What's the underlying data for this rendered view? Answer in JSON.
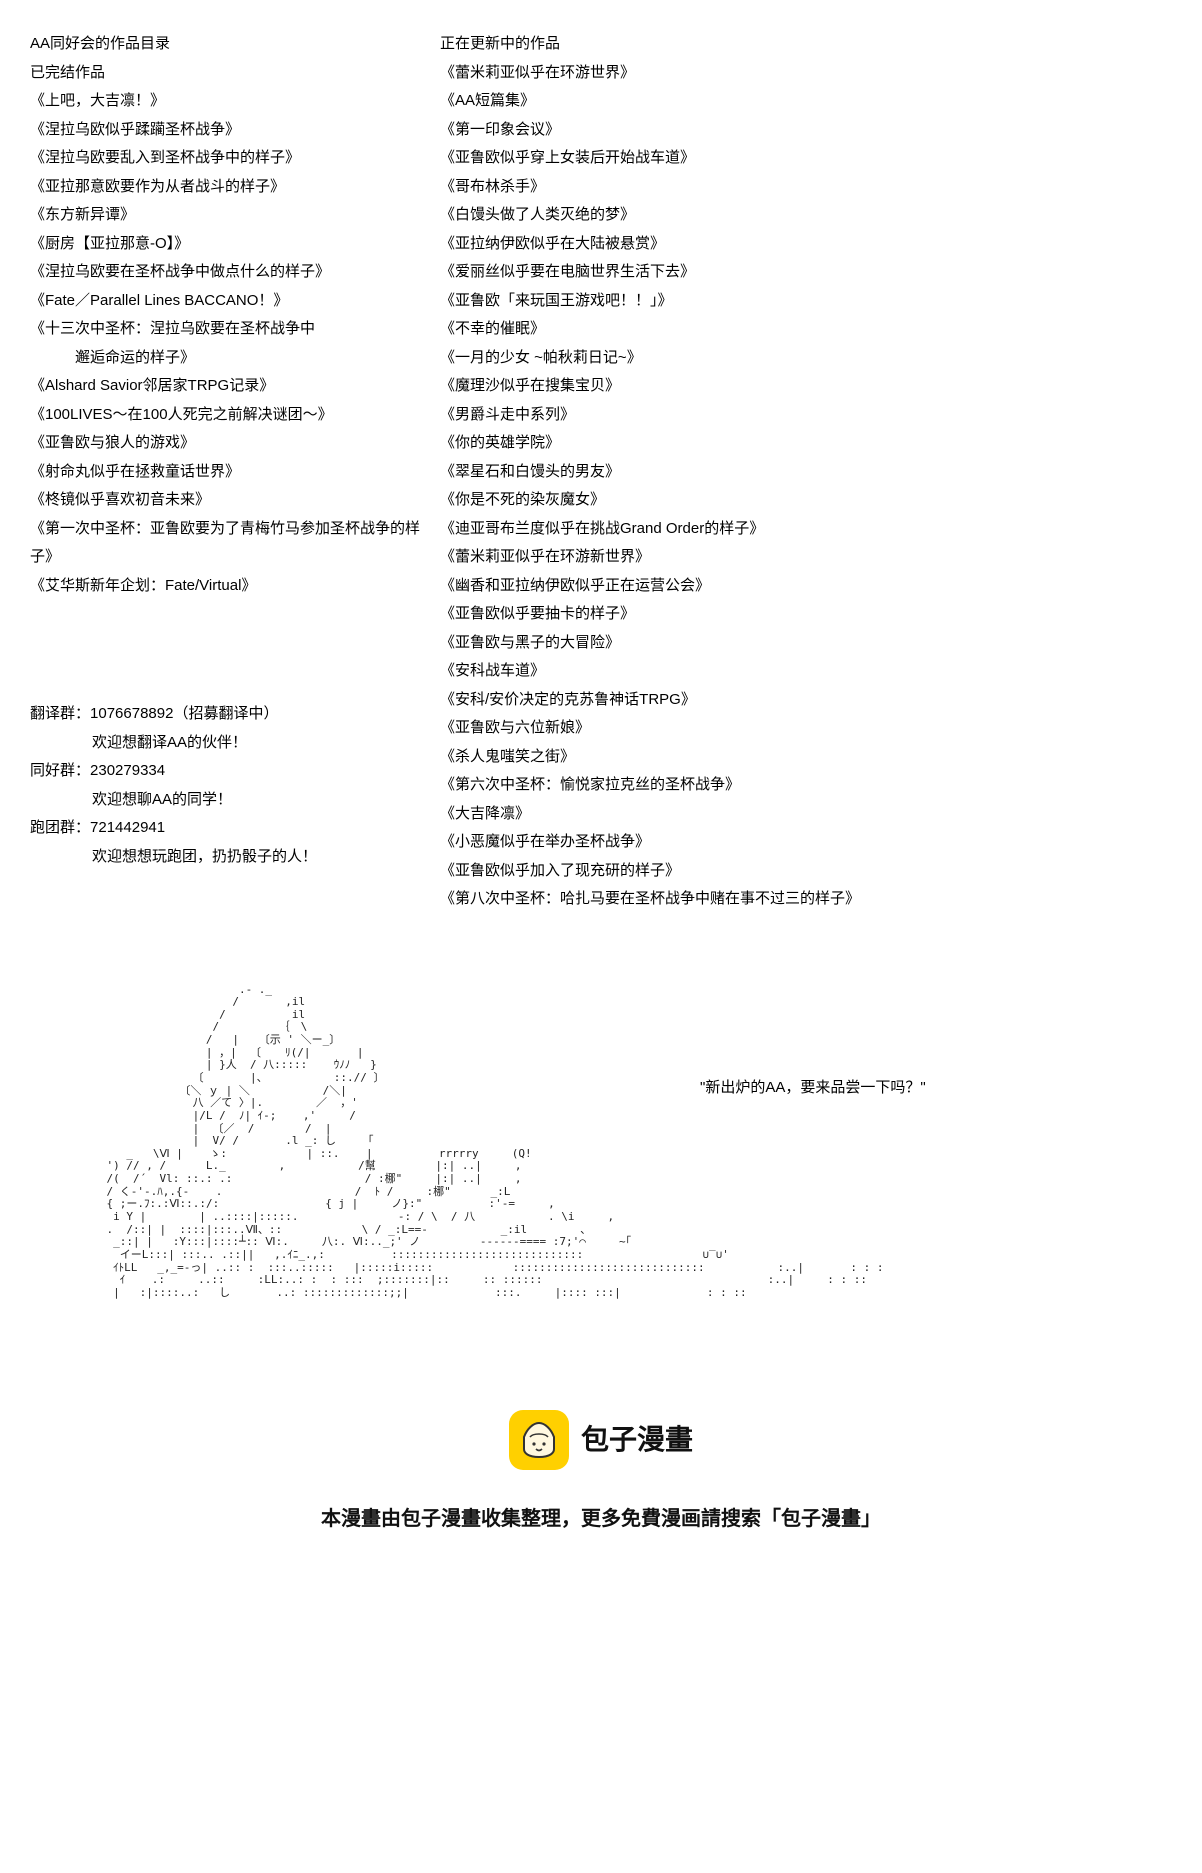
{
  "left": {
    "header": "AA同好会的作品目录",
    "completed_title": "已完结作品",
    "completed_works": [
      "《上吧，大吉凛！》",
      "《涅拉乌欧似乎蹂躏圣杯战争》",
      "《涅拉乌欧要乱入到圣杯战争中的样子》",
      "《亚拉那意欧要作为从者战斗的样子》",
      "《东方新异谭》",
      "《厨房【亚拉那意-O】》",
      "《涅拉乌欧要在圣杯战争中做点什么的样子》",
      "《Fate／Parallel Lines BACCANO！》",
      "《十三次中圣杯：涅拉乌欧要在圣杯战争中",
      "　　　邂逅命运的样子》",
      "《Alshard Savior邻居家TRPG记录》",
      "《100LIVES～在100人死完之前解决谜团～》",
      "《亚鲁欧与狼人的游戏》",
      "《射命丸似乎在拯救童话世界》",
      "《柊镜似乎喜欢初音未来》",
      "《第一次中圣杯：亚鲁欧要为了青梅竹马参加圣杯战争的样子》",
      "《艾华斯新年企划：Fate/Virtual》"
    ],
    "groups": {
      "translate_label": "翻译群：",
      "translate_id": "1076678892（招募翻译中）",
      "translate_desc": "欢迎想翻译AA的伙伴！",
      "fan_label": "同好群：",
      "fan_id": "230279334",
      "fan_desc": "欢迎想聊AA的同学！",
      "run_label": "跑团群：",
      "run_id": "721442941",
      "run_desc": "欢迎想想玩跑团，扔扔骰子的人！"
    }
  },
  "right": {
    "updating_title": "正在更新中的作品",
    "updating_works": [
      "《蕾米莉亚似乎在环游世界》",
      "《AA短篇集》",
      "《第一印象会议》",
      "《亚鲁欧似乎穿上女装后开始战车道》",
      "《哥布林杀手》",
      "《白馒头做了人类灭绝的梦》",
      "《亚拉纳伊欧似乎在大陆被悬赏》",
      "《爱丽丝似乎要在电脑世界生活下去》",
      "《亚鲁欧「来玩国王游戏吧！！」》",
      "《不幸的催眠》",
      "《一月的少女 ~帕秋莉日记~》",
      "《魔理沙似乎在搜集宝贝》",
      "《男爵斗走中系列》",
      "《你的英雄学院》",
      "《翠星石和白馒头的男友》",
      "《你是不死的染灰魔女》",
      "《迪亚哥布兰度似乎在挑战Grand Order的样子》",
      "《蕾米莉亚似乎在环游新世界》",
      "《幽香和亚拉纳伊欧似乎正在运营公会》",
      "《亚鲁欧似乎要抽卡的样子》",
      "《亚鲁欧与黑子的大冒险》",
      "《安科战车道》",
      "《安科/安价决定的克苏鲁神话TRPG》",
      "《亚鲁欧与六位新娘》",
      "《杀人鬼嗤笑之街》",
      "《第六次中圣杯：愉悦家拉克丝的圣杯战争》",
      "《大吉降凛》",
      "《小恶魔似乎在举办圣杯战争》",
      "《亚鲁欧似乎加入了现充研的样子》",
      "《第八次中圣杯：哈扎马要在圣杯战争中赌在事不过三的样子》"
    ]
  },
  "ascii": {
    "art": "                        .- ._\n                       /       ,il\n                     /          il\n                    /         ｛　\\\n                   /   |   〔示 ' ＼ー_〕\n                   | ，|  〔　  ﾘ(/|       |\n                   | }人  / 八:::::    ｳﾉﾉ   }\n                 〔       |、          ::.// 〕\n               〔＼ ｙ | ＼           /＼|\n                 八 ／て 〉|.        ／  ，'\n                 |/L /  ﾉ| ｲ-;    ,'     /\n                 |  〔／  /　      /  |\n                 |  V/ /       .l _: し    「\n       _   \\Ⅵ |    ゝ:            | ::.    |          rrrrry     (Q!\n    ') // , /      L._        ,           /幫         |:| ..|     ,\n    /(  /´  Vl: ::.: .:                    / :梛\"     |:| ..|     ,\n    / く-'-.ﾊ,.{-    .                    /  ﾄ /     :梛\"      _:L\n    { ;ー.ﾌ:.:Ⅵ::.:/:                { j |     ノ}:\"          :'-=     ,\n     i Y |        | ..::::|:::::.               -: / \\  / 八           . \\i     ,\n    .  /::| |  ::::|:::..Ⅶ、::            \\ / _:L==-           _:il        、\n     _::| |   :Y:::|::::┴:: Ⅵ:.     八:. Ⅵ:.._;' ノ         ------==== :7;'⌒     ~｢\n      イーL:::| :::.. .::||   ,.ｲﾆ_.,:          :::::::::::::::::::::::::::::                  ∪‾∪'\n     ｲﾄLL   _,_=-っ| ..:: :  :::..:::::   |:::::i:::::            :::::::::::::::::::::::::::::           :..|       : : :\n      ｲ    .:     ..::     :LL:..: :  : :::  ;:::::::|::     :: ::::::                                  :..|     : : ::\n     |   :|::::..:   し       ..: :::::::::::::;;|             :::.     |:::: :::|             : : ::",
    "quote": "\"新出炉的AA，要来品尝一下吗？\""
  },
  "footer": {
    "logo_text": "包子漫畫",
    "text": "本漫畫由包子漫畫收集整理，更多免費漫画請搜索「包子漫畫」"
  },
  "colors": {
    "background": "#ffffff",
    "text": "#000000",
    "logo_bg": "#ffd000",
    "logo_icon_body": "#fff8e0",
    "logo_icon_line": "#333333"
  }
}
